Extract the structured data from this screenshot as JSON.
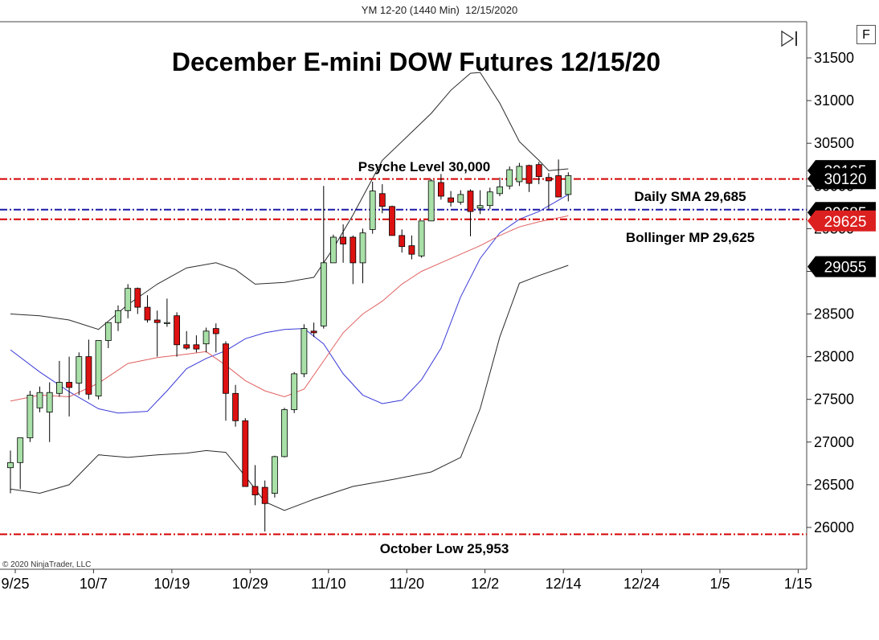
{
  "header": {
    "instrument": "YM 12-20 (1440 Min)",
    "date": "12/15/2020"
  },
  "buttons": {
    "f_label": "F",
    "play_icon": "skip-forward-icon"
  },
  "copyright": "© 2020 NinjaTrader, LLC",
  "colors": {
    "up": "#a8e0a8",
    "down": "#dd1111",
    "level_red": "#d40000",
    "level_blue": "#1a1aa8",
    "bb": "#2a2a2a",
    "sma_blue": "#3a3ad8",
    "mp_red": "#e06060",
    "tag_black": "#000000",
    "tag_red": "#dc2020"
  },
  "chart_data": {
    "type": "candlestick",
    "title": "December E-mini DOW Futures 12/15/20",
    "ylim": [
      25800,
      31700
    ],
    "y_ticks": [
      26000,
      26500,
      27000,
      27500,
      28000,
      28500,
      29000,
      29500,
      30000,
      30500,
      31000,
      31500
    ],
    "x_tick_labels": [
      "9/25",
      "10/7",
      "10/19",
      "10/29",
      "11/10",
      "11/20",
      "12/2",
      "12/14",
      "12/24",
      "1/5",
      "1/15"
    ],
    "x_tick_bar_index": [
      0,
      8,
      16,
      24,
      32,
      40,
      48,
      56,
      64,
      72,
      80
    ],
    "candles": [
      {
        "o": 26700,
        "h": 26900,
        "l": 26400,
        "c": 26760
      },
      {
        "o": 26760,
        "h": 27050,
        "l": 26450,
        "c": 27050
      },
      {
        "o": 27050,
        "h": 27600,
        "l": 27000,
        "c": 27550
      },
      {
        "o": 27400,
        "h": 27650,
        "l": 27350,
        "c": 27580
      },
      {
        "o": 27350,
        "h": 27700,
        "l": 27000,
        "c": 27580
      },
      {
        "o": 27570,
        "h": 27950,
        "l": 27530,
        "c": 27700
      },
      {
        "o": 27700,
        "h": 28000,
        "l": 27300,
        "c": 27640
      },
      {
        "o": 27690,
        "h": 28050,
        "l": 27550,
        "c": 28000
      },
      {
        "o": 28000,
        "h": 28200,
        "l": 27500,
        "c": 27560
      },
      {
        "o": 27540,
        "h": 28150,
        "l": 27500,
        "c": 28190
      },
      {
        "o": 28190,
        "h": 28400,
        "l": 28100,
        "c": 28400
      },
      {
        "o": 28400,
        "h": 28600,
        "l": 28300,
        "c": 28540
      },
      {
        "o": 28540,
        "h": 28850,
        "l": 28450,
        "c": 28800
      },
      {
        "o": 28800,
        "h": 28810,
        "l": 28500,
        "c": 28580
      },
      {
        "o": 28580,
        "h": 28720,
        "l": 28400,
        "c": 28430
      },
      {
        "o": 28430,
        "h": 28540,
        "l": 28000,
        "c": 28400
      },
      {
        "o": 28400,
        "h": 28680,
        "l": 28350,
        "c": 28400
      },
      {
        "o": 28480,
        "h": 28520,
        "l": 28000,
        "c": 28140
      },
      {
        "o": 28140,
        "h": 28300,
        "l": 28080,
        "c": 28100
      },
      {
        "o": 28140,
        "h": 28250,
        "l": 28050,
        "c": 28090
      },
      {
        "o": 28150,
        "h": 28340,
        "l": 28050,
        "c": 28300
      },
      {
        "o": 28330,
        "h": 28390,
        "l": 28050,
        "c": 28270
      },
      {
        "o": 28150,
        "h": 28180,
        "l": 27250,
        "c": 27570
      },
      {
        "o": 27570,
        "h": 27670,
        "l": 27180,
        "c": 27250
      },
      {
        "o": 27250,
        "h": 27280,
        "l": 26480,
        "c": 26480
      },
      {
        "o": 26480,
        "h": 26730,
        "l": 26260,
        "c": 26380
      },
      {
        "o": 26470,
        "h": 26550,
        "l": 25953,
        "c": 26280
      },
      {
        "o": 26400,
        "h": 26840,
        "l": 26350,
        "c": 26830
      },
      {
        "o": 26830,
        "h": 27400,
        "l": 26820,
        "c": 27380
      },
      {
        "o": 27380,
        "h": 27820,
        "l": 27340,
        "c": 27800
      },
      {
        "o": 27800,
        "h": 28380,
        "l": 27760,
        "c": 28330
      },
      {
        "o": 28300,
        "h": 28400,
        "l": 28230,
        "c": 28280
      },
      {
        "o": 28360,
        "h": 30000,
        "l": 28330,
        "c": 29100
      },
      {
        "o": 29100,
        "h": 29430,
        "l": 29100,
        "c": 29400
      },
      {
        "o": 29400,
        "h": 29550,
        "l": 29100,
        "c": 29320
      },
      {
        "o": 29400,
        "h": 29420,
        "l": 28850,
        "c": 29100
      },
      {
        "o": 29100,
        "h": 29500,
        "l": 28860,
        "c": 29450
      },
      {
        "o": 29490,
        "h": 30050,
        "l": 29440,
        "c": 29940
      },
      {
        "o": 29910,
        "h": 30020,
        "l": 29680,
        "c": 29760
      },
      {
        "o": 29760,
        "h": 29770,
        "l": 29420,
        "c": 29420
      },
      {
        "o": 29420,
        "h": 29490,
        "l": 29220,
        "c": 29290
      },
      {
        "o": 29300,
        "h": 29420,
        "l": 29140,
        "c": 29200
      },
      {
        "o": 29180,
        "h": 29590,
        "l": 29160,
        "c": 29590
      },
      {
        "o": 29590,
        "h": 30080,
        "l": 29590,
        "c": 30060
      },
      {
        "o": 30040,
        "h": 30140,
        "l": 29840,
        "c": 29880
      },
      {
        "o": 29860,
        "h": 29940,
        "l": 29760,
        "c": 29810
      },
      {
        "o": 29810,
        "h": 29950,
        "l": 29780,
        "c": 29900
      },
      {
        "o": 29940,
        "h": 29960,
        "l": 29410,
        "c": 29700
      },
      {
        "o": 29740,
        "h": 29950,
        "l": 29670,
        "c": 29770
      },
      {
        "o": 29770,
        "h": 29980,
        "l": 29730,
        "c": 29930
      },
      {
        "o": 29910,
        "h": 30100,
        "l": 29880,
        "c": 29990
      },
      {
        "o": 30000,
        "h": 30230,
        "l": 29960,
        "c": 30190
      },
      {
        "o": 30050,
        "h": 30270,
        "l": 30000,
        "c": 30230
      },
      {
        "o": 30240,
        "h": 30250,
        "l": 29930,
        "c": 30030
      },
      {
        "o": 30250,
        "h": 30280,
        "l": 30020,
        "c": 30110
      },
      {
        "o": 30100,
        "h": 30150,
        "l": 29730,
        "c": 30060
      },
      {
        "o": 30120,
        "h": 30310,
        "l": 29900,
        "c": 29870
      },
      {
        "o": 29900,
        "h": 30160,
        "l": 29820,
        "c": 30120
      }
    ],
    "bollinger_upper": [
      [
        0,
        28500
      ],
      [
        3,
        28480
      ],
      [
        6,
        28430
      ],
      [
        9,
        28320
      ],
      [
        12,
        28610
      ],
      [
        15,
        28850
      ],
      [
        18,
        29040
      ],
      [
        21,
        29100
      ],
      [
        23,
        29020
      ],
      [
        25,
        28850
      ],
      [
        28,
        28870
      ],
      [
        31,
        28930
      ],
      [
        33,
        29270
      ],
      [
        35,
        29660
      ],
      [
        38,
        30300
      ],
      [
        41,
        30630
      ],
      [
        43,
        30850
      ],
      [
        45,
        31120
      ],
      [
        47,
        31320
      ],
      [
        48,
        31330
      ],
      [
        50,
        30970
      ],
      [
        52,
        30520
      ],
      [
        54,
        30300
      ],
      [
        55,
        30180
      ],
      [
        57,
        30200
      ]
    ],
    "bollinger_lower": [
      [
        0,
        26450
      ],
      [
        3,
        26400
      ],
      [
        6,
        26500
      ],
      [
        9,
        26850
      ],
      [
        12,
        26820
      ],
      [
        15,
        26850
      ],
      [
        18,
        26870
      ],
      [
        20,
        26900
      ],
      [
        22,
        26880
      ],
      [
        24,
        26600
      ],
      [
        26,
        26300
      ],
      [
        28,
        26200
      ],
      [
        31,
        26330
      ],
      [
        35,
        26480
      ],
      [
        39,
        26560
      ],
      [
        43,
        26650
      ],
      [
        46,
        26820
      ],
      [
        48,
        27390
      ],
      [
        50,
        28230
      ],
      [
        52,
        28860
      ],
      [
        54,
        28950
      ],
      [
        57,
        29070
      ]
    ],
    "sma_20": [
      [
        0,
        28080
      ],
      [
        3,
        27820
      ],
      [
        6,
        27590
      ],
      [
        9,
        27390
      ],
      [
        11,
        27340
      ],
      [
        14,
        27360
      ],
      [
        16,
        27600
      ],
      [
        18,
        27860
      ],
      [
        20,
        27980
      ],
      [
        22,
        28070
      ],
      [
        24,
        28210
      ],
      [
        26,
        28280
      ],
      [
        28,
        28320
      ],
      [
        30,
        28330
      ],
      [
        32,
        28150
      ],
      [
        34,
        27800
      ],
      [
        36,
        27550
      ],
      [
        38,
        27450
      ],
      [
        40,
        27490
      ],
      [
        42,
        27730
      ],
      [
        44,
        28100
      ],
      [
        46,
        28700
      ],
      [
        48,
        29150
      ],
      [
        50,
        29450
      ],
      [
        52,
        29610
      ],
      [
        54,
        29700
      ],
      [
        57,
        29900
      ]
    ],
    "midpoint_line": [
      [
        0,
        27480
      ],
      [
        3,
        27550
      ],
      [
        6,
        27530
      ],
      [
        9,
        27690
      ],
      [
        12,
        27920
      ],
      [
        15,
        27990
      ],
      [
        18,
        28030
      ],
      [
        20,
        28060
      ],
      [
        22,
        27900
      ],
      [
        24,
        27720
      ],
      [
        26,
        27600
      ],
      [
        28,
        27530
      ],
      [
        30,
        27620
      ],
      [
        32,
        27950
      ],
      [
        34,
        28280
      ],
      [
        36,
        28500
      ],
      [
        38,
        28650
      ],
      [
        40,
        28850
      ],
      [
        42,
        29000
      ],
      [
        44,
        29100
      ],
      [
        46,
        29200
      ],
      [
        48,
        29300
      ],
      [
        50,
        29420
      ],
      [
        52,
        29520
      ],
      [
        54,
        29580
      ],
      [
        57,
        29650
      ]
    ],
    "levels": [
      {
        "name": "Psyche Level 30,000",
        "value": 30082,
        "color": "red"
      },
      {
        "name": "Daily SMA 29,685",
        "value": 29722,
        "color": "blue"
      },
      {
        "name": "Bollinger MP 29,625",
        "value": 29610,
        "color": "red"
      },
      {
        "name": "October Low 25,953",
        "value": 25920,
        "color": "red"
      }
    ],
    "annotations": [
      "Psyche Level 30,000",
      "Daily SMA 29,685",
      "Bollinger MP 29,625",
      "October Low 25,953"
    ],
    "price_tags": [
      {
        "label": "30120",
        "value": 30085,
        "style": "black"
      },
      {
        "label": "29625",
        "value": 29590,
        "style": "red"
      },
      {
        "label": "29055",
        "value": 29055,
        "style": "black"
      }
    ],
    "hidden_tag_fragments": [
      {
        "label": "30165",
        "value": 30180
      },
      {
        "label": "29685",
        "value": 29690
      }
    ]
  }
}
